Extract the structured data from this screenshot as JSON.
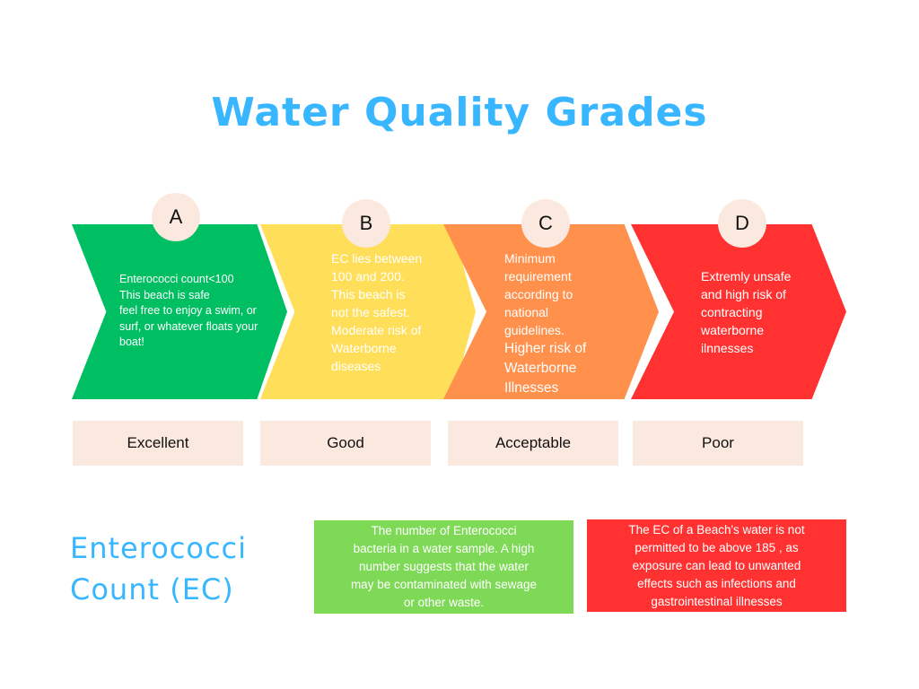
{
  "title": "Water Quality Grades",
  "grades": [
    {
      "letter": "A",
      "color": "#00bf63",
      "lines": [
        "Enterococci count<100",
        "This beach is safe",
        "feel free to enjoy a swim, or",
        "surf, or whatever floats your",
        "boat!"
      ],
      "label": "Excellent"
    },
    {
      "letter": "B",
      "color": "#ffde59",
      "lines": [
        "EC lies between",
        "100 and 200.",
        "This beach is",
        "not the safest.",
        "Moderate risk of",
        "Waterborne",
        "diseases"
      ],
      "label": "Good"
    },
    {
      "letter": "C",
      "color": "#ff914d",
      "lines": [
        "Minimum",
        "requirement",
        "according to",
        "national",
        "guidelines."
      ],
      "lines_large": [
        "Higher risk of",
        "Waterborne",
        "Illnesses"
      ],
      "label": "Acceptable"
    },
    {
      "letter": "D",
      "color": "#ff3131",
      "lines": [
        "Extremly unsafe",
        "and high risk of",
        "contracting",
        "waterborne",
        "ilnnesses"
      ],
      "label": "Poor"
    }
  ],
  "ec_title": {
    "line1": "Enterococci",
    "line2": "Count (EC)"
  },
  "info_green": {
    "color": "#7ed957",
    "lines": [
      "The number of Enterococci",
      "bacteria in a water sample. A high",
      "number suggests that the water",
      "may be contaminated with sewage",
      "or other waste."
    ]
  },
  "info_red": {
    "color": "#ff3131",
    "lines": [
      "The EC of a Beach's water is not",
      "permitted to be above 185 , as",
      "exposure can lead to  unwanted",
      "effects such as infections and",
      "gastrointestinal illnesses"
    ]
  }
}
